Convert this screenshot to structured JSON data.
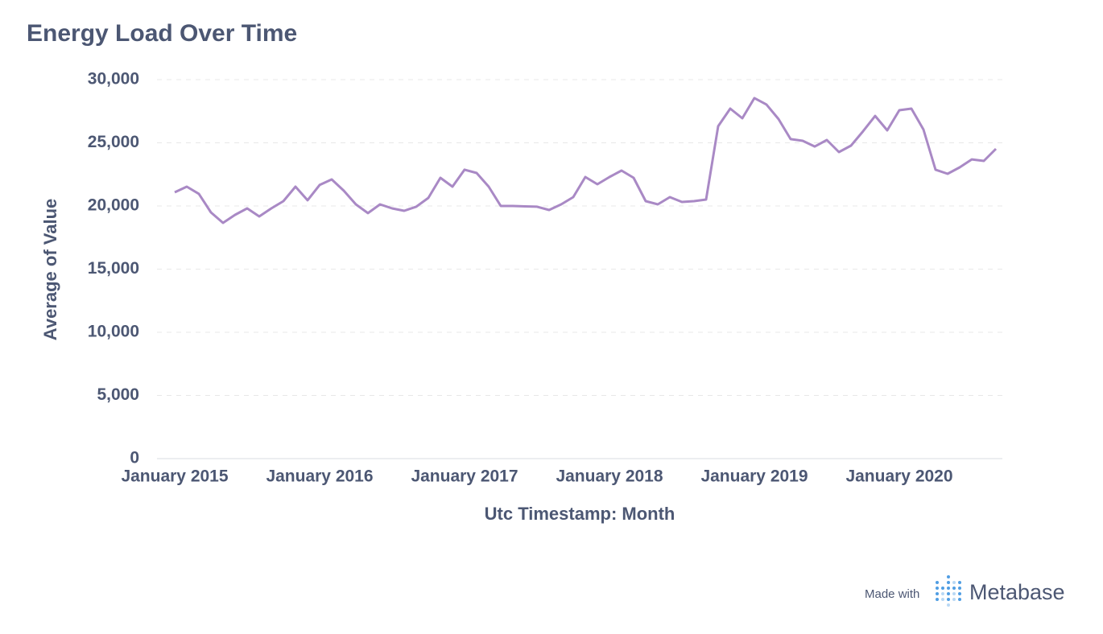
{
  "chart_data": {
    "type": "line",
    "title": "Energy Load Over Time",
    "xlabel": "Utc Timestamp: Month",
    "ylabel": "Average of Value",
    "x": [
      "2015-01",
      "2015-02",
      "2015-03",
      "2015-04",
      "2015-05",
      "2015-06",
      "2015-07",
      "2015-08",
      "2015-09",
      "2015-10",
      "2015-11",
      "2015-12",
      "2016-01",
      "2016-02",
      "2016-03",
      "2016-04",
      "2016-05",
      "2016-06",
      "2016-07",
      "2016-08",
      "2016-09",
      "2016-10",
      "2016-11",
      "2016-12",
      "2017-01",
      "2017-02",
      "2017-03",
      "2017-04",
      "2017-05",
      "2017-06",
      "2017-07",
      "2017-08",
      "2017-09",
      "2017-10",
      "2017-11",
      "2017-12",
      "2018-01",
      "2018-02",
      "2018-03",
      "2018-04",
      "2018-05",
      "2018-06",
      "2018-07",
      "2018-08",
      "2018-09",
      "2018-10",
      "2018-11",
      "2018-12",
      "2019-01",
      "2019-02",
      "2019-03",
      "2019-04",
      "2019-05",
      "2019-06",
      "2019-07",
      "2019-08",
      "2019-09",
      "2019-10",
      "2019-11",
      "2019-12",
      "2020-01",
      "2020-02",
      "2020-03",
      "2020-04",
      "2020-05",
      "2020-06",
      "2020-07",
      "2020-08",
      "2020-09"
    ],
    "series": [
      {
        "name": "Average of Value",
        "color": "#a989c5",
        "values": [
          21080,
          21530,
          20960,
          19490,
          18660,
          19300,
          19810,
          19170,
          19810,
          20380,
          21530,
          20450,
          21660,
          22100,
          21210,
          20130,
          19430,
          20130,
          19810,
          19620,
          19940,
          20640,
          22230,
          21530,
          22870,
          22610,
          21530,
          20000,
          20000,
          19970,
          19940,
          19680,
          20130,
          20700,
          22290,
          21720,
          22290,
          22800,
          22230,
          20380,
          20130,
          20700,
          20320,
          20380,
          20510,
          26310,
          27710,
          26940,
          28540,
          28030,
          26880,
          25290,
          25160,
          24710,
          25220,
          24270,
          24780,
          25920,
          27130,
          25990,
          27580,
          27710,
          26050,
          22870,
          22550,
          23060,
          23690,
          23570,
          24520
        ]
      }
    ],
    "xlim": [
      "2015-01",
      "2020-09"
    ],
    "xticks": [
      {
        "value": "2015-01",
        "label": "January 2015"
      },
      {
        "value": "2016-01",
        "label": "January 2016"
      },
      {
        "value": "2017-01",
        "label": "January 2017"
      },
      {
        "value": "2018-01",
        "label": "January 2018"
      },
      {
        "value": "2019-01",
        "label": "January 2019"
      },
      {
        "value": "2020-01",
        "label": "January 2020"
      }
    ],
    "ylim": [
      0,
      30000
    ],
    "yticks": [
      0,
      {
        "value": 5000,
        "label": "5,000"
      },
      {
        "value": 10000,
        "label": "10,000"
      },
      {
        "value": 15000,
        "label": "15,000"
      },
      {
        "value": 20000,
        "label": "20,000"
      },
      {
        "value": 25000,
        "label": "25,000"
      },
      {
        "value": 30000,
        "label": "30,000"
      }
    ],
    "grid": true
  },
  "footer": {
    "made_with": "Made with",
    "brand": "Metabase"
  }
}
